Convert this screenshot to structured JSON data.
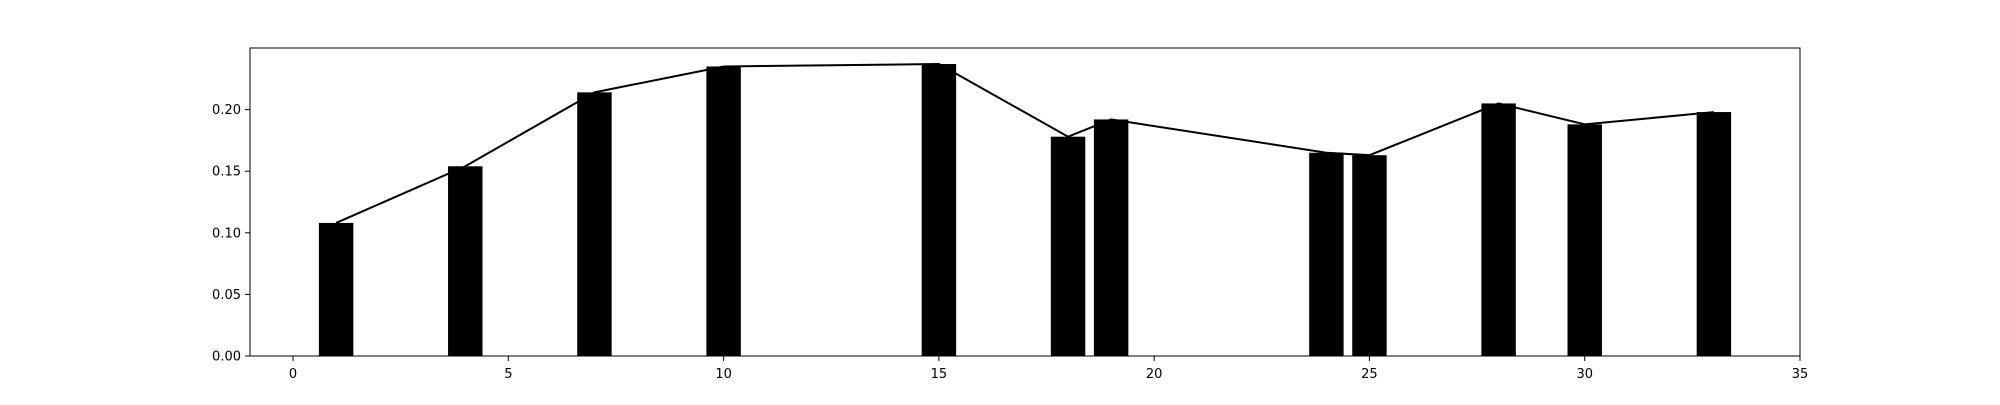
{
  "chart_data": {
    "type": "bar",
    "title": "",
    "xlabel": "",
    "ylabel": "",
    "xlim": [
      -1,
      35
    ],
    "ylim": [
      0,
      0.25
    ],
    "grid": false,
    "legend": "none",
    "bar_width": 0.8,
    "x_ticks": [
      0,
      5,
      10,
      15,
      20,
      25,
      30,
      35
    ],
    "y_ticks": [
      0.0,
      0.05,
      0.1,
      0.15,
      0.2
    ],
    "x_tick_labels": [
      "0",
      "5",
      "10",
      "15",
      "20",
      "25",
      "30",
      "35"
    ],
    "y_tick_labels": [
      "0.00",
      "0.05",
      "0.10",
      "0.15",
      "0.20"
    ],
    "series": [
      {
        "type": "bar",
        "x": [
          1,
          4,
          7,
          10,
          15,
          18,
          19,
          24,
          25,
          28,
          30,
          33
        ],
        "values": [
          0.108,
          0.154,
          0.214,
          0.235,
          0.237,
          0.178,
          0.192,
          0.165,
          0.163,
          0.205,
          0.188,
          0.198
        ]
      },
      {
        "type": "line",
        "x": [
          1,
          4,
          7,
          10,
          15,
          18,
          19,
          24,
          25,
          28,
          30,
          33
        ],
        "values": [
          0.108,
          0.154,
          0.214,
          0.235,
          0.237,
          0.178,
          0.192,
          0.165,
          0.163,
          0.205,
          0.188,
          0.198
        ]
      }
    ],
    "colors": {
      "bar": "#000000",
      "line": "#000000",
      "axes": "#000000"
    }
  }
}
